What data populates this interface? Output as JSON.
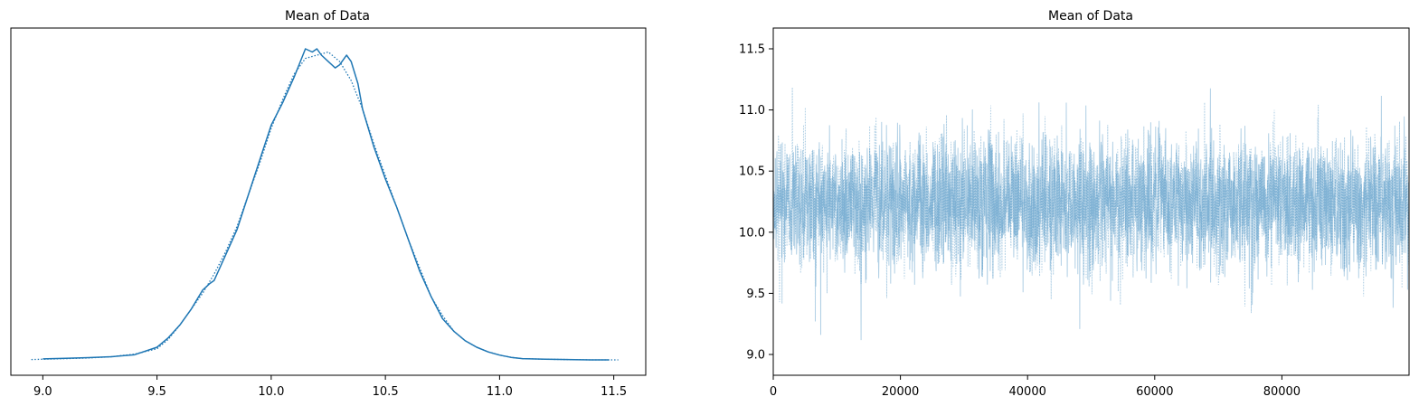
{
  "chart_data": [
    {
      "type": "line",
      "title": "Mean of Data",
      "xlabel": "",
      "ylabel": "",
      "xlim": [
        8.86,
        11.64
      ],
      "ylim": [
        0,
        1.0
      ],
      "xticks": [
        "9.0",
        "9.5",
        "10.0",
        "10.5",
        "11.0",
        "11.5"
      ],
      "xtick_values": [
        9.0,
        9.5,
        10.0,
        10.5,
        11.0,
        11.5
      ],
      "show_yticks": false,
      "grid": false,
      "color": "#1f77b4",
      "series": [
        {
          "linestyle": "solid",
          "x": [
            9.0,
            9.1,
            9.2,
            9.3,
            9.4,
            9.5,
            9.55,
            9.6,
            9.65,
            9.7,
            9.73,
            9.75,
            9.8,
            9.85,
            9.9,
            9.95,
            10.0,
            10.05,
            10.1,
            10.15,
            10.18,
            10.2,
            10.22,
            10.25,
            10.28,
            10.3,
            10.33,
            10.35,
            10.38,
            10.4,
            10.45,
            10.5,
            10.55,
            10.6,
            10.65,
            10.7,
            10.75,
            10.8,
            10.85,
            10.9,
            10.95,
            11.0,
            11.05,
            11.1,
            11.2,
            11.3,
            11.4,
            11.48
          ],
          "y": [
            0.003,
            0.005,
            0.007,
            0.01,
            0.016,
            0.04,
            0.07,
            0.11,
            0.16,
            0.22,
            0.24,
            0.25,
            0.33,
            0.41,
            0.52,
            0.63,
            0.74,
            0.81,
            0.89,
            0.98,
            0.97,
            0.98,
            0.96,
            0.94,
            0.92,
            0.93,
            0.96,
            0.94,
            0.87,
            0.79,
            0.67,
            0.57,
            0.48,
            0.38,
            0.28,
            0.2,
            0.13,
            0.09,
            0.06,
            0.04,
            0.025,
            0.015,
            0.008,
            0.004,
            0.002,
            0.001,
            0.0,
            0.0
          ]
        },
        {
          "linestyle": "dotted",
          "x": [
            8.95,
            9.1,
            9.2,
            9.3,
            9.4,
            9.5,
            9.55,
            9.6,
            9.65,
            9.7,
            9.75,
            9.8,
            9.85,
            9.9,
            9.95,
            10.0,
            10.05,
            10.1,
            10.15,
            10.2,
            10.25,
            10.3,
            10.35,
            10.4,
            10.45,
            10.5,
            10.55,
            10.6,
            10.65,
            10.7,
            10.75,
            10.8,
            10.85,
            10.9,
            10.95,
            11.0,
            11.05,
            11.1,
            11.2,
            11.3,
            11.4,
            11.52
          ],
          "y": [
            0.001,
            0.004,
            0.006,
            0.01,
            0.018,
            0.035,
            0.065,
            0.11,
            0.16,
            0.21,
            0.27,
            0.34,
            0.42,
            0.52,
            0.62,
            0.73,
            0.82,
            0.9,
            0.95,
            0.96,
            0.97,
            0.94,
            0.88,
            0.79,
            0.68,
            0.58,
            0.48,
            0.38,
            0.29,
            0.2,
            0.14,
            0.09,
            0.06,
            0.04,
            0.025,
            0.015,
            0.008,
            0.004,
            0.002,
            0.001,
            0.0,
            0.0
          ]
        }
      ]
    },
    {
      "type": "line",
      "title": "Mean of Data",
      "xlabel": "",
      "ylabel": "",
      "xlim": [
        0,
        100000
      ],
      "ylim": [
        8.83,
        11.67
      ],
      "xticks": [
        "0",
        "20000",
        "40000",
        "60000",
        "80000"
      ],
      "xtick_values": [
        0,
        20000,
        40000,
        60000,
        80000
      ],
      "yticks": [
        "9.0",
        "9.5",
        "10.0",
        "10.5",
        "11.0",
        "11.5"
      ],
      "ytick_values": [
        9.0,
        9.5,
        10.0,
        10.5,
        11.0,
        11.5
      ],
      "grid": false,
      "color": "#1f77b4",
      "n_draws": 100000,
      "center": 10.25,
      "sd": 0.27,
      "series": [
        {
          "linestyle": "solid",
          "alpha": 0.35
        },
        {
          "linestyle": "dotted",
          "alpha": 0.35
        }
      ]
    }
  ]
}
